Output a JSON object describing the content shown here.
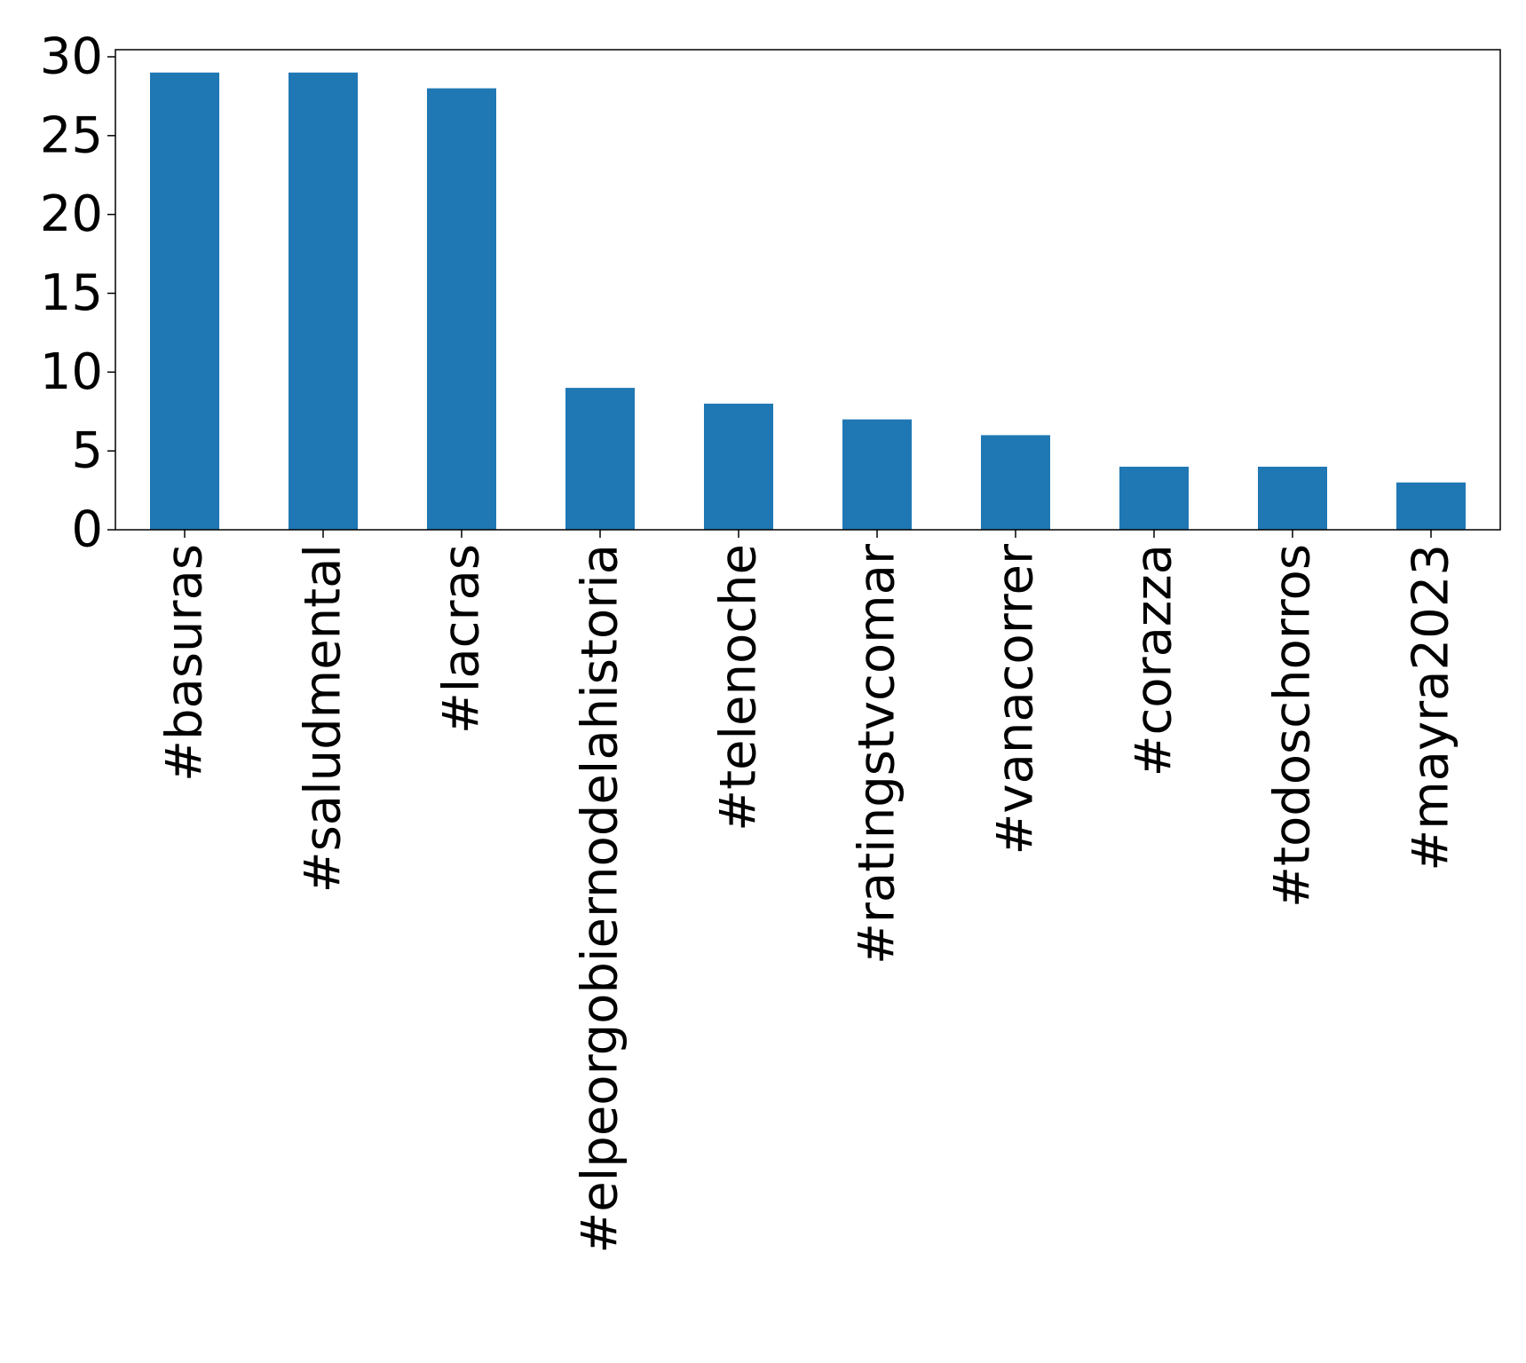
{
  "chart_data": {
    "type": "bar",
    "title": "",
    "xlabel": "",
    "ylabel": "",
    "categories": [
      "#basuras",
      "#saludmental",
      "#lacras",
      "#elpeorgobiernodelahistoria",
      "#telenoche",
      "#ratingstvcomar",
      "#vanacorrer",
      "#corazza",
      "#todoschorros",
      "#mayra2023"
    ],
    "values": [
      29,
      29,
      28,
      9,
      8,
      7,
      6,
      4,
      4,
      3
    ],
    "ylim": [
      0,
      30.45
    ],
    "yticks": [
      0,
      5,
      10,
      15,
      20,
      25,
      30
    ],
    "bar_color": "#1f77b4",
    "grid": false,
    "legend": "none"
  }
}
